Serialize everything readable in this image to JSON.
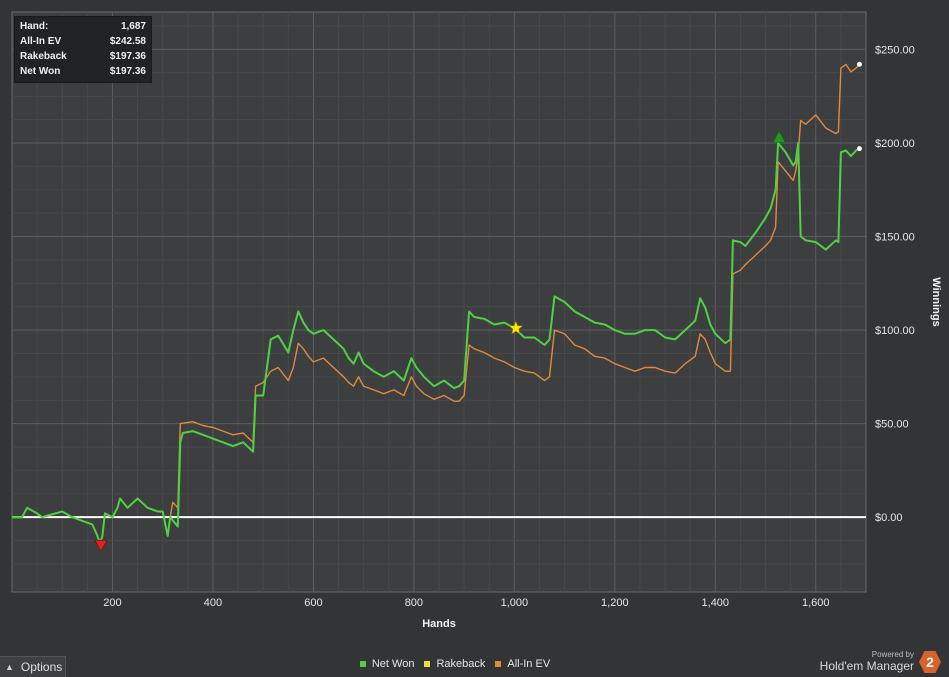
{
  "stats": [
    {
      "label": "Hand:",
      "value": "1,687"
    },
    {
      "label": "All-In EV",
      "value": "$242.58"
    },
    {
      "label": "Rakeback",
      "value": "$197.36"
    },
    {
      "label": "Net Won",
      "value": "$197.36"
    }
  ],
  "options_label": "Options",
  "brand": {
    "powered": "Powered by",
    "name": "Hold'em Manager",
    "logo_text": "2"
  },
  "chart_data": {
    "type": "line",
    "title": "",
    "xlabel": "Hands",
    "ylabel": "Winnings",
    "xlim": [
      0,
      1700
    ],
    "ylim": [
      -40,
      270
    ],
    "x_ticks": [
      200,
      400,
      600,
      800,
      1000,
      1200,
      1400,
      1600
    ],
    "x_tick_labels": [
      "200",
      "400",
      "600",
      "800",
      "1,000",
      "1,200",
      "1,400",
      "1,600"
    ],
    "y_ticks": [
      0,
      50,
      100,
      150,
      200,
      250
    ],
    "y_tick_labels": [
      "$0.00",
      "$50.00",
      "$100.00",
      "$150.00",
      "$200.00",
      "$250.00"
    ],
    "grid": true,
    "legend_position": "bottom-center",
    "series": [
      {
        "name": "Net Won",
        "color": "#4fd143",
        "points": [
          [
            0,
            0
          ],
          [
            20,
            0
          ],
          [
            30,
            5
          ],
          [
            50,
            2
          ],
          [
            60,
            0
          ],
          [
            100,
            3
          ],
          [
            120,
            0
          ],
          [
            160,
            -4
          ],
          [
            170,
            -10
          ],
          [
            175,
            -14
          ],
          [
            180,
            -10
          ],
          [
            185,
            2
          ],
          [
            200,
            0
          ],
          [
            210,
            5
          ],
          [
            215,
            10
          ],
          [
            230,
            5
          ],
          [
            250,
            10
          ],
          [
            270,
            5
          ],
          [
            290,
            3
          ],
          [
            300,
            3
          ],
          [
            310,
            -10
          ],
          [
            315,
            0
          ],
          [
            330,
            -5
          ],
          [
            335,
            40
          ],
          [
            340,
            45
          ],
          [
            360,
            46
          ],
          [
            380,
            44
          ],
          [
            400,
            42
          ],
          [
            420,
            40
          ],
          [
            440,
            38
          ],
          [
            460,
            40
          ],
          [
            480,
            35
          ],
          [
            485,
            65
          ],
          [
            500,
            65
          ],
          [
            515,
            95
          ],
          [
            530,
            97
          ],
          [
            550,
            88
          ],
          [
            560,
            100
          ],
          [
            570,
            110
          ],
          [
            580,
            104
          ],
          [
            590,
            100
          ],
          [
            600,
            98
          ],
          [
            620,
            100
          ],
          [
            640,
            95
          ],
          [
            660,
            90
          ],
          [
            670,
            85
          ],
          [
            680,
            82
          ],
          [
            690,
            88
          ],
          [
            700,
            82
          ],
          [
            720,
            78
          ],
          [
            740,
            75
          ],
          [
            760,
            78
          ],
          [
            780,
            73
          ],
          [
            795,
            85
          ],
          [
            805,
            80
          ],
          [
            820,
            75
          ],
          [
            840,
            70
          ],
          [
            860,
            73
          ],
          [
            880,
            69
          ],
          [
            890,
            70
          ],
          [
            900,
            73
          ],
          [
            910,
            110
          ],
          [
            920,
            107
          ],
          [
            940,
            106
          ],
          [
            960,
            103
          ],
          [
            980,
            104
          ],
          [
            1000,
            101
          ],
          [
            1020,
            96
          ],
          [
            1040,
            96
          ],
          [
            1060,
            92
          ],
          [
            1070,
            95
          ],
          [
            1080,
            118
          ],
          [
            1100,
            115
          ],
          [
            1120,
            110
          ],
          [
            1140,
            107
          ],
          [
            1160,
            104
          ],
          [
            1180,
            103
          ],
          [
            1200,
            100
          ],
          [
            1220,
            98
          ],
          [
            1240,
            98
          ],
          [
            1260,
            100
          ],
          [
            1280,
            100
          ],
          [
            1300,
            96
          ],
          [
            1320,
            95
          ],
          [
            1340,
            100
          ],
          [
            1360,
            105
          ],
          [
            1370,
            117
          ],
          [
            1380,
            112
          ],
          [
            1390,
            103
          ],
          [
            1400,
            98
          ],
          [
            1420,
            93
          ],
          [
            1430,
            95
          ],
          [
            1435,
            148
          ],
          [
            1450,
            147
          ],
          [
            1460,
            145
          ],
          [
            1480,
            152
          ],
          [
            1500,
            160
          ],
          [
            1510,
            165
          ],
          [
            1520,
            175
          ],
          [
            1525,
            200
          ],
          [
            1540,
            195
          ],
          [
            1555,
            188
          ],
          [
            1560,
            190
          ],
          [
            1565,
            200
          ],
          [
            1570,
            150
          ],
          [
            1580,
            148
          ],
          [
            1600,
            147
          ],
          [
            1620,
            143
          ],
          [
            1640,
            148
          ],
          [
            1645,
            147
          ],
          [
            1650,
            195
          ],
          [
            1660,
            196
          ],
          [
            1670,
            193
          ],
          [
            1680,
            196
          ],
          [
            1687,
            197
          ]
        ]
      },
      {
        "name": "Rakeback",
        "color": "#e6e040",
        "points": []
      },
      {
        "name": "All-In EV",
        "color": "#e08a3c",
        "points": [
          [
            0,
            0
          ],
          [
            20,
            0
          ],
          [
            30,
            5
          ],
          [
            50,
            2
          ],
          [
            60,
            0
          ],
          [
            100,
            3
          ],
          [
            120,
            0
          ],
          [
            160,
            -4
          ],
          [
            170,
            -10
          ],
          [
            175,
            -14
          ],
          [
            180,
            -10
          ],
          [
            185,
            2
          ],
          [
            200,
            0
          ],
          [
            210,
            5
          ],
          [
            215,
            10
          ],
          [
            230,
            5
          ],
          [
            250,
            10
          ],
          [
            270,
            5
          ],
          [
            290,
            3
          ],
          [
            300,
            3
          ],
          [
            310,
            -10
          ],
          [
            315,
            0
          ],
          [
            320,
            8
          ],
          [
            330,
            5
          ],
          [
            335,
            50
          ],
          [
            360,
            51
          ],
          [
            380,
            49
          ],
          [
            400,
            48
          ],
          [
            420,
            46
          ],
          [
            440,
            44
          ],
          [
            460,
            45
          ],
          [
            480,
            40
          ],
          [
            485,
            70
          ],
          [
            500,
            72
          ],
          [
            515,
            78
          ],
          [
            530,
            80
          ],
          [
            550,
            73
          ],
          [
            560,
            80
          ],
          [
            570,
            93
          ],
          [
            580,
            90
          ],
          [
            590,
            86
          ],
          [
            600,
            83
          ],
          [
            620,
            85
          ],
          [
            640,
            80
          ],
          [
            660,
            75
          ],
          [
            670,
            72
          ],
          [
            680,
            70
          ],
          [
            690,
            75
          ],
          [
            700,
            70
          ],
          [
            720,
            68
          ],
          [
            740,
            66
          ],
          [
            760,
            68
          ],
          [
            780,
            65
          ],
          [
            795,
            75
          ],
          [
            805,
            70
          ],
          [
            820,
            66
          ],
          [
            840,
            63
          ],
          [
            860,
            65
          ],
          [
            880,
            62
          ],
          [
            890,
            62
          ],
          [
            900,
            65
          ],
          [
            910,
            92
          ],
          [
            920,
            90
          ],
          [
            940,
            88
          ],
          [
            960,
            85
          ],
          [
            980,
            83
          ],
          [
            1000,
            80
          ],
          [
            1020,
            78
          ],
          [
            1040,
            77
          ],
          [
            1060,
            73
          ],
          [
            1070,
            75
          ],
          [
            1080,
            100
          ],
          [
            1100,
            98
          ],
          [
            1120,
            92
          ],
          [
            1140,
            90
          ],
          [
            1160,
            86
          ],
          [
            1180,
            85
          ],
          [
            1200,
            82
          ],
          [
            1220,
            80
          ],
          [
            1240,
            78
          ],
          [
            1260,
            80
          ],
          [
            1280,
            80
          ],
          [
            1300,
            78
          ],
          [
            1320,
            77
          ],
          [
            1340,
            82
          ],
          [
            1360,
            86
          ],
          [
            1370,
            98
          ],
          [
            1380,
            95
          ],
          [
            1390,
            88
          ],
          [
            1400,
            82
          ],
          [
            1420,
            78
          ],
          [
            1430,
            78
          ],
          [
            1435,
            130
          ],
          [
            1450,
            132
          ],
          [
            1460,
            135
          ],
          [
            1480,
            140
          ],
          [
            1500,
            145
          ],
          [
            1510,
            148
          ],
          [
            1520,
            155
          ],
          [
            1525,
            190
          ],
          [
            1540,
            185
          ],
          [
            1555,
            180
          ],
          [
            1560,
            185
          ],
          [
            1565,
            195
          ],
          [
            1570,
            212
          ],
          [
            1580,
            210
          ],
          [
            1600,
            215
          ],
          [
            1620,
            208
          ],
          [
            1640,
            205
          ],
          [
            1645,
            206
          ],
          [
            1650,
            240
          ],
          [
            1660,
            242
          ],
          [
            1670,
            238
          ],
          [
            1680,
            240
          ],
          [
            1687,
            242
          ]
        ]
      }
    ],
    "markers": [
      {
        "type": "low-point",
        "color": "#e02020",
        "x": 177,
        "y": -15
      },
      {
        "type": "rakeback-star",
        "color": "#ffe600",
        "x": 1003,
        "y": 101
      },
      {
        "type": "high-point",
        "color": "#1f9a1f",
        "x": 1527,
        "y": 203
      }
    ],
    "baseline": 0
  }
}
